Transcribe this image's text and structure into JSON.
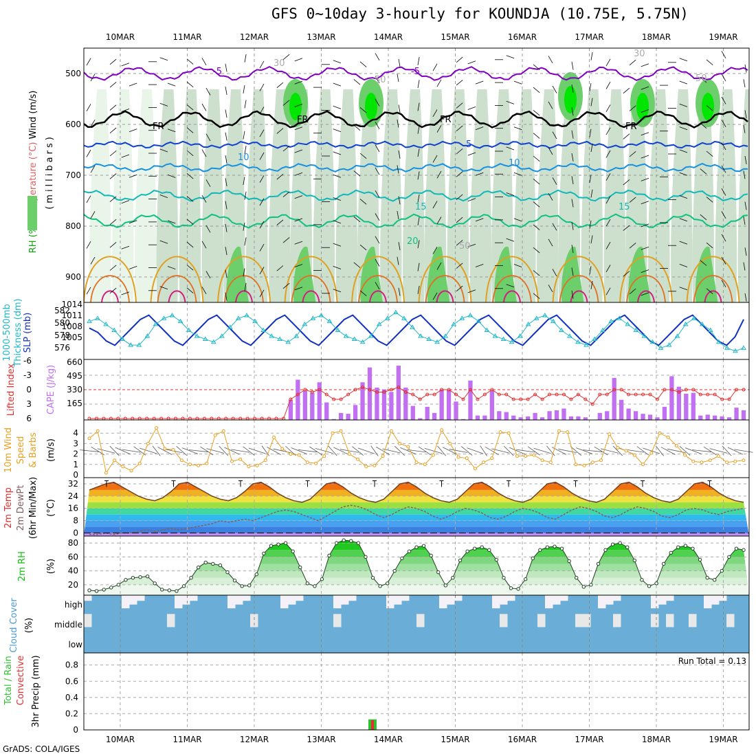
{
  "title": "GFS 0~10day 3-hourly for KOUNDJA (10.75E, 5.75N)",
  "footer": "GrADS: COLA/IGES",
  "colors": {
    "rh_light": "#e8f4e8",
    "rh_mid": "#c8dcc8",
    "rh_green": "#6ccf6c",
    "rh_bright": "#00e600",
    "temp_purple": "#8000c0",
    "fr_black": "#000000",
    "t5": "#1040d0",
    "t10": "#1890e0",
    "t15": "#10b8b8",
    "t20": "#10c080",
    "t_orange": "#e0a020",
    "t_red": "#d02080",
    "slp": "#1030c0",
    "thick": "#20b8c8",
    "cape": "#c070f0",
    "li": "#e03030",
    "wind": "#e8a020",
    "rh2m": "#10c010",
    "cloud": "#6aaed8",
    "precip_total": "#30c030",
    "precip_conv": "#e03030"
  },
  "chart_data": [
    {
      "type": "heatmap",
      "panel": "upper-air",
      "ylabel_parts": [
        "RH (%)",
        "Temperature (°C)",
        "Wind (m/s)"
      ],
      "ylabel_units": "(millibars)",
      "y_ticks": [
        500,
        600,
        700,
        800,
        900
      ],
      "ylim": [
        450,
        950
      ],
      "x_ticks_top": [
        "10MAR",
        "11MAR",
        "12MAR",
        "13MAR",
        "14MAR",
        "15MAR",
        "16MAR",
        "17MAR",
        "18MAR",
        "19MAR"
      ],
      "contour_labels": [
        "-5",
        "-5",
        "FR",
        "FR",
        "FR",
        "FR",
        "5",
        "10",
        "10",
        "15",
        "15",
        "20",
        "30",
        "50",
        "50",
        "50",
        "30"
      ],
      "isotherm_levels": [
        {
          "level": -5,
          "p": 500
        },
        {
          "level": 0,
          "p": 590
        },
        {
          "level": 5,
          "p": 640
        },
        {
          "level": 10,
          "p": 685
        },
        {
          "level": 15,
          "p": 740
        },
        {
          "level": 20,
          "p": 790
        }
      ]
    },
    {
      "type": "line",
      "panel": "slp-thickness",
      "ylabel_left": "1000-500mb Thickness (dm)",
      "ylabel_right": "SLP (mb)",
      "left_ticks": [
        "582",
        "580",
        "578",
        "576"
      ],
      "right_ticks": [
        "1014",
        "1011",
        "1008",
        "1005"
      ],
      "series": [
        {
          "name": "SLP (mb)",
          "values": [
            1010,
            1009,
            1007,
            1006,
            1008,
            1010,
            1012,
            1013,
            1011,
            1009,
            1007,
            1006,
            1008,
            1010,
            1012,
            1013,
            1011,
            1009,
            1007,
            1006,
            1008,
            1010,
            1012,
            1013,
            1011,
            1009,
            1007,
            1006,
            1008,
            1010,
            1012,
            1013,
            1011,
            1009,
            1007,
            1006,
            1008,
            1010,
            1012,
            1013,
            1011,
            1009,
            1007,
            1006,
            1008,
            1010,
            1012,
            1013,
            1011,
            1009,
            1007,
            1006,
            1008,
            1010,
            1012,
            1013,
            1011,
            1009,
            1007,
            1006,
            1008,
            1010,
            1012,
            1013,
            1011,
            1009,
            1007,
            1006,
            1008,
            1010,
            1012,
            1013,
            1011,
            1009,
            1007,
            1006,
            1008,
            1012
          ]
        },
        {
          "name": "1000-500mb Thickness (dm)",
          "values": [
            580.5,
            581,
            580,
            579,
            577.5,
            576.5,
            576.5,
            578,
            580,
            581,
            581.5,
            580.5,
            579,
            578,
            577.5,
            577,
            578,
            579.5,
            581,
            581.5,
            580.5,
            579,
            578,
            577.5,
            577,
            578,
            580,
            581,
            581.5,
            580.5,
            579,
            578,
            577.5,
            577,
            578,
            580,
            581,
            582,
            581,
            579.5,
            578,
            577.5,
            577,
            578,
            580,
            581,
            581.5,
            580.5,
            579,
            578,
            577.5,
            577,
            578,
            580,
            581,
            581.5,
            580.5,
            579,
            578,
            577,
            576.5,
            577.5,
            579,
            580.5,
            581,
            580,
            579,
            578,
            577,
            576,
            576.5,
            578,
            580,
            581,
            580,
            579,
            577,
            576,
            575.5,
            576
          ]
        }
      ]
    },
    {
      "type": "bar",
      "panel": "cape-li",
      "ylabel_left": "Lifted Index",
      "ylabel_right": "CAPE (J/kg)",
      "left_ticks": [
        "-6",
        "-3",
        "0",
        "3",
        "6"
      ],
      "right_ticks": [
        "660",
        "495",
        "330",
        "165"
      ],
      "series": [
        {
          "name": "CAPE (J/kg)",
          "values": [
            0,
            0,
            0,
            0,
            0,
            0,
            0,
            0,
            0,
            0,
            0,
            0,
            0,
            0,
            0,
            0,
            0,
            0,
            0,
            0,
            0,
            0,
            0,
            0,
            0,
            0,
            0,
            0,
            230,
            460,
            330,
            310,
            430,
            200,
            10,
            80,
            70,
            170,
            430,
            600,
            370,
            350,
            320,
            620,
            370,
            160,
            20,
            150,
            80,
            350,
            340,
            210,
            10,
            450,
            50,
            50,
            330,
            100,
            90,
            50,
            30,
            40,
            80,
            30,
            100,
            110,
            130,
            40,
            40,
            30,
            0,
            80,
            100,
            480,
            230,
            130,
            100,
            70,
            60,
            30,
            150,
            500,
            380,
            300,
            310,
            50,
            60,
            50,
            40,
            30,
            140,
            110
          ]
        },
        {
          "name": "Lifted Index",
          "values": [
            6,
            6,
            6,
            6,
            6,
            6,
            6,
            6,
            6,
            6,
            6,
            6,
            6,
            6,
            6,
            6,
            6,
            6,
            6,
            6,
            6,
            6,
            6,
            6,
            6,
            6,
            6,
            6,
            2,
            1,
            0,
            0.5,
            0,
            1,
            2,
            2,
            1,
            0,
            -0.5,
            0,
            0.5,
            0.5,
            0,
            -0.5,
            0.5,
            1,
            2,
            1,
            1,
            0,
            0,
            1,
            2,
            0,
            2,
            1,
            0,
            1,
            1,
            2,
            2,
            2,
            1,
            2,
            1,
            1,
            1,
            2,
            1,
            2,
            3,
            1,
            1,
            0,
            0,
            1,
            1,
            1,
            1,
            2,
            0,
            0,
            0.5,
            0,
            0,
            1,
            1,
            1,
            2,
            2,
            0,
            0
          ]
        }
      ]
    },
    {
      "type": "line",
      "panel": "wind10m",
      "ylabel_parts": [
        "10m Wind",
        "Speed",
        "& Barbs"
      ],
      "ylabel_units": "(m/s)",
      "y_ticks": [
        "4",
        "3",
        "2",
        "1",
        "0"
      ],
      "ylim": [
        0,
        5
      ],
      "series": [
        {
          "name": "10m Wind Speed",
          "values": [
            3.5,
            4.2,
            0.2,
            1.4,
            0.8,
            0.4,
            1.1,
            3.0,
            4.5,
            2.5,
            2.4,
            1.4,
            1.0,
            0.9,
            1.1,
            3.8,
            4.2,
            1.3,
            1.5,
            0.8,
            0.9,
            1.4,
            3.6,
            2.5,
            2.0,
            1.9,
            1.2,
            1.1,
            1.8,
            4.0,
            4.2,
            2.0,
            1.5,
            0.8,
            0.9,
            1.8,
            4.2,
            3.0,
            2.7,
            1.2,
            1.0,
            1.9,
            4.3,
            3.0,
            1.7,
            1.6,
            0.6,
            1.2,
            1.6,
            4.1,
            4.0,
            1.8,
            1.8,
            1.9,
            1.4,
            1.2,
            4.2,
            4.1,
            1.0,
            0.9,
            1.2,
            1.4,
            3.9,
            2.6,
            2.3,
            1.9,
            1.0,
            2.1,
            4.0,
            3.6,
            2.8,
            1.9,
            1.3,
            1.2,
            1.4,
            1.8,
            1.2,
            1.3,
            1.4
          ]
        }
      ]
    },
    {
      "type": "area",
      "panel": "temp2m",
      "ylabel_parts": [
        "2m Temp",
        "2m DewPt",
        "(6hr Min/Max)"
      ],
      "ylabel_units": "(°C)",
      "y_ticks": [
        "32",
        "24",
        "16",
        "8",
        "0"
      ],
      "ylim": [
        -2,
        36
      ],
      "series": [
        {
          "name": "2m Temp",
          "values": [
            28,
            30,
            32,
            33,
            30,
            27,
            24,
            22,
            21,
            23,
            27,
            32,
            33,
            30,
            27,
            24,
            22,
            21,
            23,
            27,
            32,
            33,
            30,
            26,
            23,
            21,
            20,
            22,
            27,
            32,
            33,
            30,
            26,
            23,
            21,
            20,
            22,
            27,
            32,
            33,
            30,
            26,
            23,
            21,
            20,
            22,
            27,
            32,
            33,
            30,
            26,
            23,
            21,
            20,
            22,
            27,
            32,
            33,
            30,
            26,
            23,
            21,
            20,
            22,
            27,
            32,
            33,
            30,
            26,
            23,
            21,
            20,
            22,
            27,
            32,
            33,
            30,
            26,
            23,
            21,
            20
          ]
        },
        {
          "name": "2m DewPt",
          "values": [
            -1,
            -1,
            0,
            -1,
            0,
            0,
            1,
            2,
            1,
            2,
            3,
            2,
            3,
            4,
            5,
            6,
            8,
            7,
            8,
            9,
            8,
            10,
            12,
            14,
            15,
            14,
            12,
            10,
            8,
            11,
            14,
            17,
            18,
            17,
            15,
            12,
            10,
            12,
            15,
            17,
            16,
            14,
            11,
            9,
            11,
            14,
            16,
            15,
            13,
            10,
            9,
            11,
            14,
            16,
            15,
            13,
            10,
            9,
            12,
            15,
            17,
            16,
            14,
            11,
            10,
            12,
            15,
            17,
            16,
            14,
            11,
            10,
            12,
            15,
            16,
            15,
            13,
            12,
            14,
            15,
            16
          ]
        }
      ]
    },
    {
      "type": "area",
      "panel": "rh2m",
      "ylabel": "2m RH",
      "ylabel_units": "(%)",
      "y_ticks": [
        "80",
        "60",
        "40",
        "20"
      ],
      "ylim": [
        5,
        90
      ],
      "series": [
        {
          "name": "2m RH",
          "values": [
            12,
            11,
            13,
            16,
            20,
            27,
            30,
            31,
            32,
            22,
            13,
            12,
            11,
            18,
            30,
            45,
            52,
            50,
            48,
            38,
            26,
            18,
            19,
            35,
            65,
            76,
            78,
            80,
            68,
            45,
            22,
            18,
            28,
            62,
            80,
            84,
            83,
            80,
            60,
            30,
            18,
            22,
            40,
            58,
            68,
            74,
            76,
            62,
            38,
            19,
            30,
            55,
            68,
            72,
            74,
            70,
            56,
            30,
            15,
            14,
            28,
            58,
            70,
            74,
            75,
            72,
            54,
            30,
            17,
            20,
            50,
            70,
            78,
            80,
            74,
            55,
            27,
            18,
            22,
            50,
            66,
            74,
            76,
            72,
            56,
            30,
            27,
            40,
            60,
            72,
            70
          ]
        }
      ]
    },
    {
      "type": "heatmap",
      "panel": "cloud",
      "ylabel": "Cloud Cover",
      "ylabel_units": "(%)",
      "levels": [
        "high",
        "middle",
        "low"
      ]
    },
    {
      "type": "bar",
      "panel": "precip",
      "ylabel_parts": [
        "Total / Rain",
        "Convective"
      ],
      "ylabel_units": "3hr Precip (mm)",
      "y_ticks": [
        "0.8",
        "0.6",
        "0.4",
        "0.2",
        "0"
      ],
      "ylim": [
        0,
        0.95
      ],
      "run_total_label": "Run Total = 0.13",
      "series": [
        {
          "name": "Total",
          "values": [
            0.13
          ]
        },
        {
          "name": "Convective",
          "values": [
            0.12
          ]
        }
      ],
      "x_ticks_bottom": [
        "10MAR",
        "11MAR",
        "12MAR",
        "13MAR",
        "14MAR",
        "15MAR",
        "16MAR",
        "17MAR",
        "18MAR",
        "19MAR"
      ]
    }
  ]
}
